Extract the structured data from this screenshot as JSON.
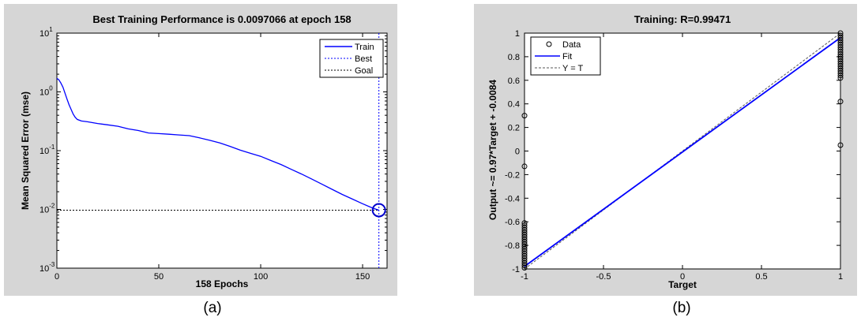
{
  "captions": {
    "a": "(a)",
    "b": "(b)"
  },
  "chart_data": [
    {
      "type": "line",
      "title": "Best Training Performance is 0.0097066 at epoch 158",
      "xlabel": "158 Epochs",
      "ylabel": "Mean Squared Error  (mse)",
      "yscale": "log",
      "xlim": [
        0,
        162
      ],
      "ylim": [
        0.001,
        10
      ],
      "grid": false,
      "legend_position": "top-right",
      "x_ticks": [
        {
          "v": 0,
          "label": "0"
        },
        {
          "v": 50,
          "label": "50"
        },
        {
          "v": 100,
          "label": "100"
        },
        {
          "v": 150,
          "label": "150"
        }
      ],
      "y_ticks": [
        {
          "exp": 1,
          "base": "10",
          "sup": "1"
        },
        {
          "exp": 0,
          "base": "10",
          "sup": "0"
        },
        {
          "exp": -1,
          "base": "10",
          "sup": "-1"
        },
        {
          "exp": -2,
          "base": "10",
          "sup": "-2"
        },
        {
          "exp": -3,
          "base": "10",
          "sup": "-3"
        }
      ],
      "series": [
        {
          "name": "Train",
          "color": "#0000ff",
          "style": "solid",
          "x": [
            0,
            1,
            2,
            3,
            4,
            5,
            6,
            7,
            8,
            9,
            10,
            12,
            15,
            20,
            25,
            30,
            35,
            40,
            45,
            50,
            55,
            60,
            65,
            70,
            75,
            80,
            85,
            90,
            95,
            100,
            105,
            110,
            115,
            120,
            125,
            130,
            135,
            140,
            145,
            150,
            155,
            158
          ],
          "y": [
            1.7,
            1.6,
            1.4,
            1.2,
            0.95,
            0.75,
            0.6,
            0.5,
            0.42,
            0.37,
            0.34,
            0.32,
            0.31,
            0.29,
            0.275,
            0.26,
            0.235,
            0.22,
            0.2,
            0.195,
            0.19,
            0.185,
            0.18,
            0.165,
            0.15,
            0.135,
            0.118,
            0.102,
            0.09,
            0.08,
            0.068,
            0.058,
            0.048,
            0.04,
            0.033,
            0.027,
            0.022,
            0.018,
            0.015,
            0.0125,
            0.0105,
            0.0097066
          ]
        },
        {
          "name": "Best",
          "color": "#0000ff",
          "style": "dotted",
          "x_const": 158
        },
        {
          "name": "Goal",
          "color": "#000000",
          "style": "dotted",
          "y_const": 0.0097066
        }
      ],
      "best_point": {
        "x": 158,
        "y": 0.0097066
      }
    },
    {
      "type": "scatter",
      "title": "Training: R=0.99471",
      "xlabel": "Target",
      "ylabel": "Output ~= 0.97*Target + -0.0084",
      "xlim": [
        -1,
        1
      ],
      "ylim": [
        -1,
        1
      ],
      "grid": false,
      "legend_position": "top-left",
      "x_ticks": [
        "-1",
        "-0.5",
        "0",
        "0.5",
        "1"
      ],
      "y_ticks": [
        "1",
        "0.8",
        "0.6",
        "0.4",
        "0.2",
        "0",
        "-0.2",
        "-0.4",
        "-0.6",
        "-0.8",
        "-1"
      ],
      "fit": {
        "slope": 0.97,
        "intercept": -0.0084
      },
      "series": [
        {
          "name": "Data",
          "marker": "circle",
          "color": "#000000",
          "points": [
            [
              -1,
              0.3
            ],
            [
              -1,
              -0.13
            ],
            [
              -1,
              -0.61
            ],
            [
              -1,
              -0.63
            ],
            [
              -1,
              -0.65
            ],
            [
              -1,
              -0.67
            ],
            [
              -1,
              -0.69
            ],
            [
              -1,
              -0.71
            ],
            [
              -1,
              -0.73
            ],
            [
              -1,
              -0.75
            ],
            [
              -1,
              -0.77
            ],
            [
              -1,
              -0.79
            ],
            [
              -1,
              -0.81
            ],
            [
              -1,
              -0.83
            ],
            [
              -1,
              -0.85
            ],
            [
              -1,
              -0.87
            ],
            [
              -1,
              -0.89
            ],
            [
              -1,
              -0.91
            ],
            [
              -1,
              -0.93
            ],
            [
              -1,
              -0.95
            ],
            [
              -1,
              -0.97
            ],
            [
              -1,
              -0.99
            ],
            [
              1,
              0.05
            ],
            [
              1,
              0.42
            ],
            [
              1,
              0.62
            ],
            [
              1,
              0.64
            ],
            [
              1,
              0.66
            ],
            [
              1,
              0.68
            ],
            [
              1,
              0.7
            ],
            [
              1,
              0.72
            ],
            [
              1,
              0.74
            ],
            [
              1,
              0.76
            ],
            [
              1,
              0.78
            ],
            [
              1,
              0.8
            ],
            [
              1,
              0.82
            ],
            [
              1,
              0.84
            ],
            [
              1,
              0.86
            ],
            [
              1,
              0.88
            ],
            [
              1,
              0.9
            ],
            [
              1,
              0.92
            ],
            [
              1,
              0.94
            ],
            [
              1,
              0.96
            ],
            [
              1,
              0.98
            ],
            [
              1,
              1.0
            ]
          ]
        },
        {
          "name": "Fit",
          "color": "#0000ff",
          "style": "solid"
        },
        {
          "name": "Y = T",
          "color": "#555555",
          "style": "dashed"
        }
      ]
    }
  ]
}
